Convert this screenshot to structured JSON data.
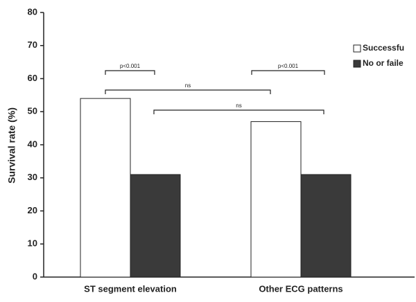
{
  "chart_data": {
    "type": "bar",
    "y_label": "Survival rate (%)",
    "categories": [
      "ST segment elevation",
      "Other ECG patterns"
    ],
    "series": [
      {
        "name": "Successfu",
        "color": "#ffffff",
        "values": [
          54,
          47
        ]
      },
      {
        "name": "No or faile",
        "color": "#3a3a3a",
        "values": [
          31,
          31
        ]
      }
    ],
    "ylim": [
      0,
      80
    ],
    "yticks": [
      0,
      10,
      20,
      30,
      40,
      50,
      60,
      70,
      80
    ],
    "grid": false,
    "annotations": [
      "p<0.001",
      "ns",
      "ns",
      "p<0.001"
    ]
  }
}
